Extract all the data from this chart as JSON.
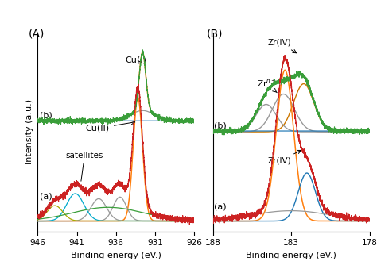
{
  "panel_A": {
    "label": "(A)",
    "xlabel": "Binding energy (eV.)",
    "ylabel": "Intensity (a.u.)",
    "xmin": 926,
    "xmax": 946
  },
  "panel_B": {
    "label": "(B)",
    "xlabel": "Binding energy (eV.)",
    "xmin": 178,
    "xmax": 188
  },
  "colors": {
    "green": "#3a9e3a",
    "orange": "#ff7f0e",
    "gray": "#999999",
    "blue": "#1f77b4",
    "red": "#cc2222",
    "yellow_green": "#aaaa00",
    "dark_orange": "#cc7700",
    "cyan": "#00aacc",
    "black": "#000000"
  }
}
